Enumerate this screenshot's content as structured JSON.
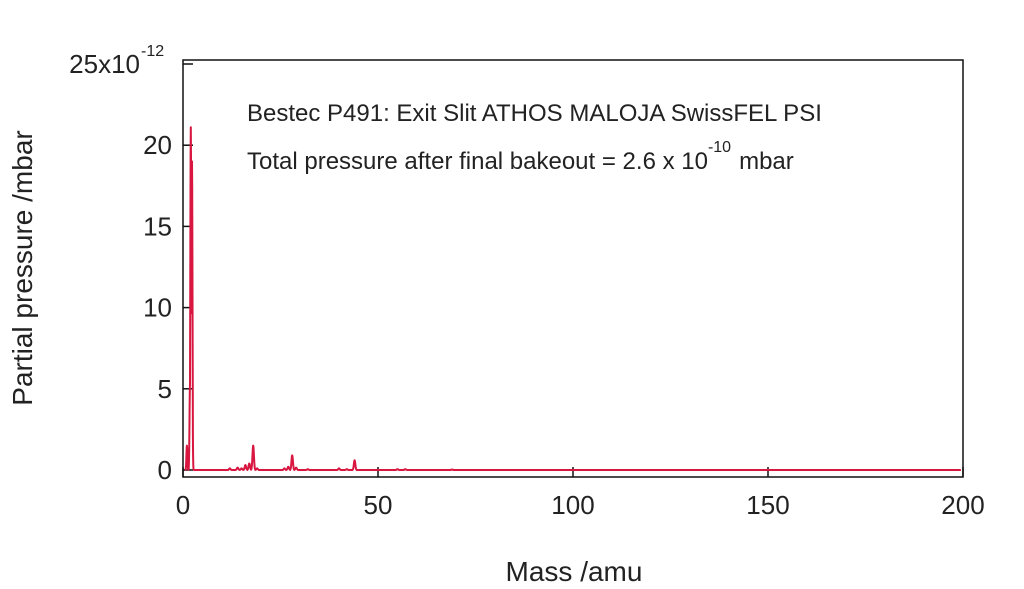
{
  "chart_data": {
    "type": "line",
    "xlabel": "Mass /amu",
    "ylabel": "Partial pressure /mbar",
    "xlim": [
      0,
      200
    ],
    "ylim": [
      0,
      25
    ],
    "x_ticks": [
      0,
      50,
      100,
      150,
      200
    ],
    "y_ticks": [
      0,
      5,
      10,
      15,
      20,
      25
    ],
    "y_tick_labels": [
      "0",
      "5",
      "10",
      "15",
      "20",
      "25x10"
    ],
    "y_scale_exponent": "-12",
    "annotations": {
      "line1": "Bestec P491: Exit Slit ATHOS MALOJA SwissFEL PSI",
      "line2_prefix": "Total pressure after final bakeout = 2.6 x 10",
      "line2_exponent": "-10",
      "line2_suffix": "mbar"
    },
    "grid": false,
    "series": [
      {
        "color": "#d8163f",
        "peaks": [
          {
            "mass": 1,
            "value": 1.5
          },
          {
            "mass": 1.8,
            "value": 5.3
          },
          {
            "mass": 2,
            "value": 21.1
          },
          {
            "mass": 2.3,
            "value": 19.0
          },
          {
            "mass": 12,
            "value": 0.1
          },
          {
            "mass": 14,
            "value": 0.15
          },
          {
            "mass": 15,
            "value": 0.1
          },
          {
            "mass": 16,
            "value": 0.3
          },
          {
            "mass": 17,
            "value": 0.4
          },
          {
            "mass": 18,
            "value": 1.5
          },
          {
            "mass": 19,
            "value": 0.1
          },
          {
            "mass": 26,
            "value": 0.1
          },
          {
            "mass": 27,
            "value": 0.2
          },
          {
            "mass": 28,
            "value": 0.9
          },
          {
            "mass": 29,
            "value": 0.15
          },
          {
            "mass": 32,
            "value": 0.05
          },
          {
            "mass": 40,
            "value": 0.1
          },
          {
            "mass": 42,
            "value": 0.05
          },
          {
            "mass": 44,
            "value": 0.6
          },
          {
            "mass": 55,
            "value": 0.05
          },
          {
            "mass": 57,
            "value": 0.05
          },
          {
            "mass": 69,
            "value": 0.03
          }
        ]
      }
    ]
  }
}
